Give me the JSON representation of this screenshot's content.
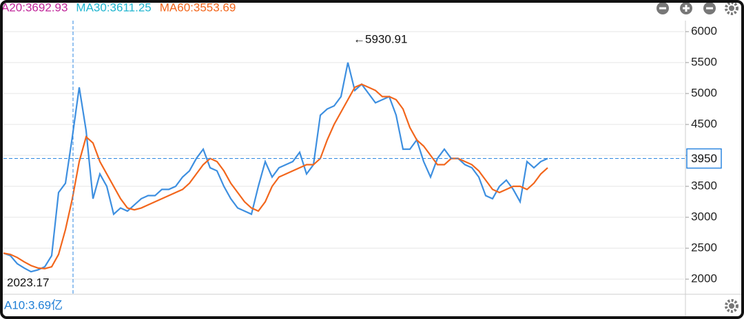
{
  "chart_data": {
    "type": "line",
    "legend_texts": [
      {
        "text": "A20:3692.93",
        "color": "#c0269a"
      },
      {
        "text": "MA30:3611.25",
        "color": "#1fb5cf"
      },
      {
        "text": "MA60:3553.69",
        "color": "#f2661c"
      }
    ],
    "volume_label": "A10:3.69亿",
    "x": [
      0,
      1,
      2,
      3,
      4,
      5,
      6,
      7,
      8,
      9,
      10,
      11,
      12,
      13,
      14,
      15,
      16,
      17,
      18,
      19,
      20,
      21,
      22,
      23,
      24,
      25,
      26,
      27,
      28,
      29,
      30,
      31,
      32,
      33,
      34,
      35,
      36,
      37,
      38,
      39,
      40,
      41,
      42,
      43,
      44,
      45,
      46,
      47,
      48,
      49,
      50,
      51,
      52,
      53,
      54,
      55,
      56,
      57,
      58,
      59,
      60,
      61,
      62,
      63,
      64,
      65,
      66,
      67,
      68,
      69,
      70,
      71,
      72,
      73,
      74,
      75,
      76,
      77,
      78,
      79
    ],
    "series": [
      {
        "color": "#3d8fe0",
        "values": [
          2420,
          2380,
          2250,
          2180,
          2120,
          2150,
          2200,
          2380,
          3400,
          3550,
          4300,
          5100,
          4400,
          3300,
          3700,
          3500,
          3050,
          3150,
          3100,
          3200,
          3300,
          3350,
          3350,
          3450,
          3450,
          3500,
          3650,
          3750,
          3950,
          4100,
          3800,
          3750,
          3500,
          3300,
          3150,
          3100,
          3050,
          3500,
          3900,
          3650,
          3800,
          3850,
          3900,
          4050,
          3700,
          3850,
          4650,
          4750,
          4800,
          4950,
          5500,
          5050,
          5150,
          5000,
          4850,
          4900,
          4950,
          4650,
          4100,
          4100,
          4250,
          3900,
          3650,
          3950,
          4100,
          3950,
          3950,
          3850,
          3800,
          3650,
          3350,
          3300,
          3500,
          3600,
          3450,
          3250,
          3900,
          3800,
          3900,
          3950
        ]
      },
      {
        "color": "#f2661c",
        "values": [
          2420,
          2400,
          2350,
          2280,
          2220,
          2180,
          2170,
          2200,
          2400,
          2800,
          3300,
          3900,
          4300,
          4200,
          3900,
          3700,
          3500,
          3300,
          3150,
          3120,
          3150,
          3200,
          3250,
          3300,
          3350,
          3400,
          3450,
          3550,
          3700,
          3850,
          3950,
          3900,
          3750,
          3550,
          3400,
          3250,
          3150,
          3100,
          3250,
          3500,
          3650,
          3700,
          3750,
          3800,
          3850,
          3850,
          3950,
          4250,
          4500,
          4700,
          4900,
          5100,
          5150,
          5100,
          5050,
          4950,
          4950,
          4900,
          4750,
          4450,
          4250,
          4150,
          4000,
          3850,
          3850,
          3950,
          3950,
          3900,
          3850,
          3750,
          3600,
          3450,
          3400,
          3450,
          3500,
          3500,
          3450,
          3550,
          3700,
          3800
        ]
      }
    ],
    "annotations": [
      {
        "text": "←5930.91",
        "x": 50.3,
        "y": 5930.91
      },
      {
        "text": "2023.17",
        "x": 0,
        "y": 2023.17
      }
    ],
    "crosshair": {
      "x": 10.1,
      "y": 3950
    },
    "xlim": [
      0,
      98.8
    ],
    "ylim": [
      1756,
      6178
    ],
    "yticks": [
      2000,
      2500,
      3000,
      3500,
      4000,
      4500,
      5000,
      5500,
      6000
    ],
    "grid": true
  }
}
